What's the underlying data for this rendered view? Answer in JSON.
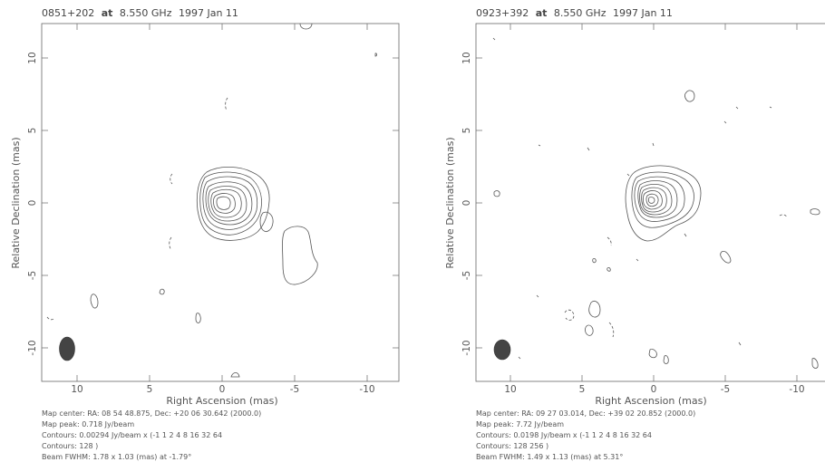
{
  "panels": [
    {
      "title_source": "0851+202",
      "title_at": "at",
      "title_freq": "8.550 GHz",
      "title_date": "1997 Jan 11",
      "xlabel": "Right Ascension   (mas)",
      "ylabel": "Relative Declination   (mas)",
      "info": [
        "Map center:  RA: 08 54 48.875,  Dec: +20 06 30.642 (2000.0)",
        "Map peak: 0.718 Jy/beam",
        "Contours: 0.00294 Jy/beam x (-1 1 2 4 8 16 32 64",
        "Contours: 128 )",
        "Beam FWHM: 1.78 x 1.03 (mas) at -1.79°"
      ]
    },
    {
      "title_source": "0923+392",
      "title_at": "at",
      "title_freq": "8.550 GHz",
      "title_date": "1997 Jan 11",
      "xlabel": "Right Ascension   (mas)",
      "ylabel": "Relative Declination   (mas)",
      "info": [
        "Map center:  RA: 09 27 03.014,  Dec: +39 02 20.852 (2000.0)",
        "Map peak: 7.72 Jy/beam",
        "Contours: 0.0198 Jy/beam x (-1 1 2 4 8 16 32 64",
        "Contours: 128 256 )",
        "Beam FWHM: 1.49 x 1.13 (mas) at 5.31°"
      ]
    }
  ],
  "axes": {
    "x_ticks": [
      "10",
      "5",
      "0",
      "-5",
      "-10"
    ],
    "y_ticks": [
      "10",
      "5",
      "0",
      "-5",
      "-10"
    ]
  }
}
